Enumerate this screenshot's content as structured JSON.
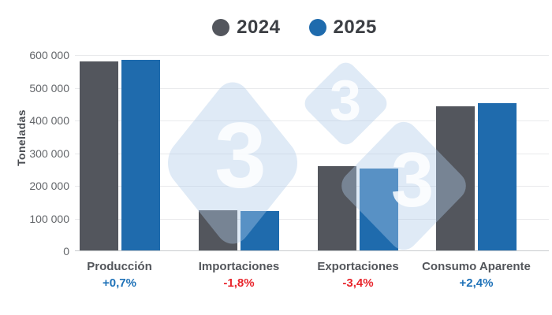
{
  "legend": {
    "items": [
      {
        "label": "2024",
        "color": "#53565d"
      },
      {
        "label": "2025",
        "color": "#1f6bad"
      }
    ]
  },
  "y_axis": {
    "title": "Toneladas",
    "max": 600000,
    "ticks": [
      "600 000",
      "500 000",
      "400 000",
      "300 000",
      "200 000",
      "100 000",
      "0"
    ]
  },
  "chart_data": {
    "type": "bar",
    "title": "",
    "xlabel": "",
    "ylabel": "Toneladas",
    "ylim": [
      0,
      600000
    ],
    "grid": true,
    "legend_position": "top",
    "categories": [
      "Producción",
      "Importaciones",
      "Exportaciones",
      "Consumo Aparente"
    ],
    "series": [
      {
        "name": "2024",
        "color": "#53565d",
        "values": [
          581000,
          125000,
          261000,
          443000
        ]
      },
      {
        "name": "2025",
        "color": "#1f6bad",
        "values": [
          585100,
          122800,
          252100,
          453600
        ]
      }
    ],
    "deltas": [
      {
        "text": "+0,7%",
        "value": 0.7,
        "direction": "up"
      },
      {
        "text": "-1,8%",
        "value": -1.8,
        "direction": "down"
      },
      {
        "text": "-3,4%",
        "value": -3.4,
        "direction": "down"
      },
      {
        "text": "+2,4%",
        "value": 2.4,
        "direction": "up"
      }
    ]
  },
  "watermark": {
    "glyph": "3"
  },
  "colors": {
    "positive": "#1f72b8",
    "negative": "#e8262d",
    "grid": "#e9eaec",
    "axis_line": "#c8cbce",
    "tick_text": "#63666a",
    "category_text": "#53565b",
    "legend_text": "#3c3f44",
    "watermark_fill": "rgba(174,203,232,0.40)",
    "watermark_glyph": "rgba(255,255,255,0.85)"
  }
}
